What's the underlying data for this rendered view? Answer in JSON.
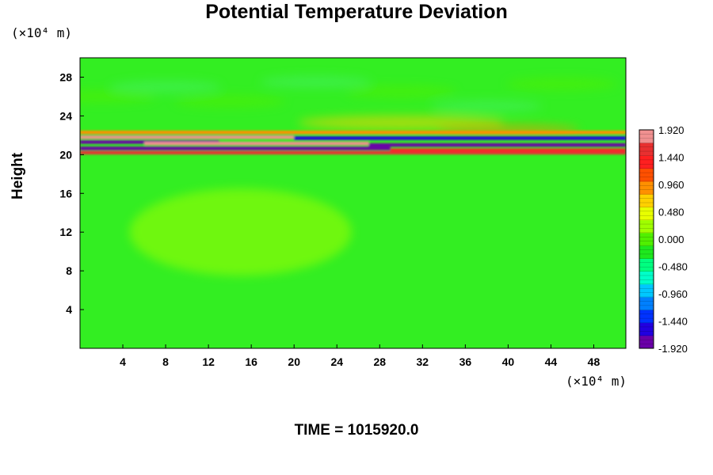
{
  "chart_data": {
    "type": "heatmap",
    "title": "Potential Temperature Deviation",
    "ylabel": "Height",
    "y_unit": "(×10⁴ m)",
    "x_unit": "(×10⁴ m)",
    "xlim": [
      0,
      51
    ],
    "ylim": [
      0,
      30
    ],
    "x_ticks": [
      "4",
      "8",
      "12",
      "16",
      "20",
      "24",
      "28",
      "32",
      "36",
      "40",
      "44",
      "48"
    ],
    "y_ticks": [
      "4",
      "8",
      "12",
      "16",
      "20",
      "24",
      "28"
    ],
    "colorbar": {
      "labels": [
        "1.920",
        "1.440",
        "0.960",
        "0.480",
        "0.000",
        "-0.480",
        "-0.960",
        "-1.440",
        "-1.920"
      ],
      "range": [
        -1.92,
        1.92
      ],
      "colors": [
        "#6a00a8",
        "#2200e0",
        "#0033ff",
        "#0080ff",
        "#00c8ff",
        "#00ffc8",
        "#00ff80",
        "#1ee81e",
        "#50f000",
        "#a0ff00",
        "#e8ff00",
        "#ffd000",
        "#ff9000",
        "#ff5000",
        "#ff2020",
        "#e83030",
        "#f09090"
      ]
    },
    "field_description": "Mostly near-zero field; strong alternating positive/negative anomaly band near height 20–22; slight positive anomalies above 22",
    "band": {
      "center_height": 20.8,
      "max_value": 1.92,
      "min_value": -1.92
    },
    "footer": "TIME = 1015920.0"
  }
}
